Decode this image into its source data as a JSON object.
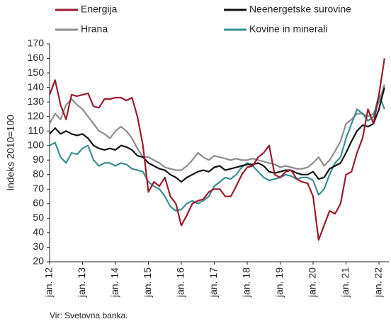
{
  "chart_data": {
    "type": "line",
    "y_label": "Indeks 2010=100",
    "source": "Vir: Svetovna banka.",
    "categories": [
      "jan. 12",
      null,
      null,
      null,
      null,
      null,
      "jan. 13",
      null,
      null,
      null,
      null,
      null,
      "jan. 14",
      null,
      null,
      null,
      null,
      null,
      "jan. 15",
      null,
      null,
      null,
      null,
      null,
      "jan. 16",
      null,
      null,
      null,
      null,
      null,
      "jan. 17",
      null,
      null,
      null,
      null,
      null,
      "jan. 18",
      null,
      null,
      null,
      null,
      null,
      "jan. 19",
      null,
      null,
      null,
      null,
      null,
      "jan. 20",
      null,
      null,
      null,
      null,
      null,
      "jan. 21",
      null,
      null,
      null,
      null,
      null,
      "jan. 22",
      null
    ],
    "series": [
      {
        "name": "Energija",
        "color": "#9b1b30",
        "values": [
          135,
          145,
          128,
          118,
          135,
          134,
          135,
          136,
          127,
          126,
          132,
          132,
          133,
          133,
          131,
          133,
          120,
          100,
          68,
          75,
          72,
          78,
          65,
          60,
          45,
          52,
          60,
          62,
          63,
          68,
          70,
          70,
          65,
          65,
          72,
          80,
          85,
          86,
          92,
          95,
          100,
          80,
          78,
          82,
          83,
          77,
          75,
          74,
          65,
          35,
          45,
          55,
          53,
          60,
          80,
          82,
          95,
          105,
          125,
          115,
          135,
          160
        ]
      },
      {
        "name": "Neenergetske surovine",
        "color": "#111111",
        "values": [
          108,
          112,
          108,
          110,
          108,
          107,
          108,
          105,
          100,
          98,
          97,
          98,
          97,
          100,
          99,
          97,
          93,
          92,
          88,
          86,
          84,
          83,
          80,
          78,
          75,
          78,
          80,
          82,
          83,
          82,
          85,
          86,
          83,
          84,
          85,
          86,
          87,
          87,
          88,
          86,
          82,
          81,
          82,
          83,
          83,
          81,
          80,
          80,
          82,
          77,
          78,
          84,
          86,
          88,
          95,
          103,
          110,
          114,
          113,
          115,
          125,
          140
        ]
      },
      {
        "name": "Hrana",
        "color": "#8c8c8c",
        "values": [
          115,
          122,
          118,
          128,
          132,
          128,
          125,
          120,
          115,
          110,
          108,
          105,
          110,
          113,
          110,
          105,
          98,
          92,
          92,
          90,
          88,
          85,
          84,
          83,
          83,
          86,
          90,
          95,
          92,
          90,
          93,
          92,
          91,
          90,
          91,
          90,
          90,
          91,
          90,
          89,
          88,
          87,
          85,
          86,
          85,
          84,
          84,
          85,
          88,
          92,
          86,
          90,
          96,
          103,
          115,
          118,
          122,
          122,
          120,
          122,
          130,
          142
        ]
      },
      {
        "name": "Kovine in minerali",
        "color": "#3a8f8f",
        "values": [
          100,
          102,
          92,
          88,
          95,
          94,
          98,
          100,
          90,
          86,
          88,
          88,
          86,
          88,
          87,
          84,
          83,
          82,
          75,
          72,
          70,
          65,
          58,
          55,
          56,
          60,
          62,
          60,
          62,
          65,
          72,
          75,
          78,
          77,
          80,
          85,
          88,
          86,
          82,
          78,
          76,
          77,
          78,
          80,
          79,
          77,
          78,
          78,
          76,
          66,
          70,
          80,
          88,
          92,
          105,
          115,
          125,
          122,
          117,
          120,
          135,
          125
        ]
      }
    ],
    "ylim": [
      20,
      170
    ],
    "yticks": [
      20,
      30,
      40,
      50,
      60,
      70,
      80,
      90,
      100,
      110,
      120,
      130,
      140,
      150,
      160,
      170
    ]
  }
}
